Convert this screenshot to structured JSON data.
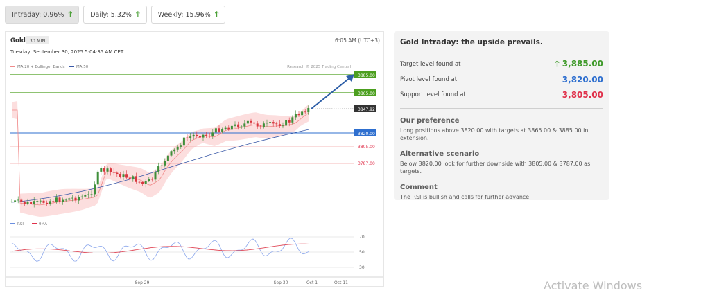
{
  "tabs": [
    {
      "label": "Intraday: 0.96%",
      "active": true
    },
    {
      "label": "Daily: 5.32%",
      "active": false
    },
    {
      "label": "Weekly: 15.96%",
      "active": false
    }
  ],
  "chart": {
    "symbol": "Gold",
    "interval": "30 MIN",
    "time": "6:05 AM (UTC+3)",
    "datetime": "Tuesday, September 30, 2025 5:04:35 AM CET",
    "legend_bollinger": "MA 20 + Bollinger Bands",
    "legend_ma50": "MA 50",
    "copyright": "Research © 2025 Trading Central",
    "level_labels": [
      "3885.00",
      "3865.00",
      "3847.92",
      "3820.00",
      "3805.00",
      "3787.00"
    ],
    "rsi_legend": "RSI",
    "rsi_ma_legend": "9MA",
    "rsi_ticks": [
      "70",
      "50",
      "30"
    ],
    "x_ticks": [
      "Sep 29",
      "Sep 30",
      "Oct 1",
      "Oct 11"
    ]
  },
  "chart_data": {
    "type": "candlestick",
    "price_levels": [
      {
        "label": "3885.00",
        "kind": "target",
        "color": "#4c9f1f"
      },
      {
        "label": "3865.00",
        "kind": "target",
        "color": "#4c9f1f"
      },
      {
        "label": "3847.92",
        "kind": "last",
        "color": "#333333"
      },
      {
        "label": "3820.00",
        "kind": "pivot",
        "color": "#2e6fcf"
      },
      {
        "label": "3805.00",
        "kind": "support",
        "color": "#e0314b"
      },
      {
        "label": "3787.00",
        "kind": "support",
        "color": "#e0314b"
      }
    ],
    "rsi_ticks": [
      70,
      50,
      30
    ],
    "x_ticks": [
      "Sep 29",
      "Sep 30",
      "Oct 1",
      "Oct 11"
    ]
  },
  "info": {
    "title": "Gold Intraday: the upside prevails.",
    "levels": [
      {
        "label": "Target level found at",
        "value": "3,885.00"
      },
      {
        "label": "Pivot level found at",
        "value": "3,820.00"
      },
      {
        "label": "Support level found at",
        "value": "3,805.00"
      }
    ],
    "preference_title": "Our preference",
    "preference_text": "Long positions above 3820.00 with targets at 3865.00 & 3885.00 in extension.",
    "alternative_title": "Alternative scenario",
    "alternative_text": "Below 3820.00 look for further downside with 3805.00 & 3787.00 as targets.",
    "comment_title": "Comment",
    "comment_text": "The RSI is bullish and calls for further advance."
  },
  "watermark": "Activate Windows"
}
